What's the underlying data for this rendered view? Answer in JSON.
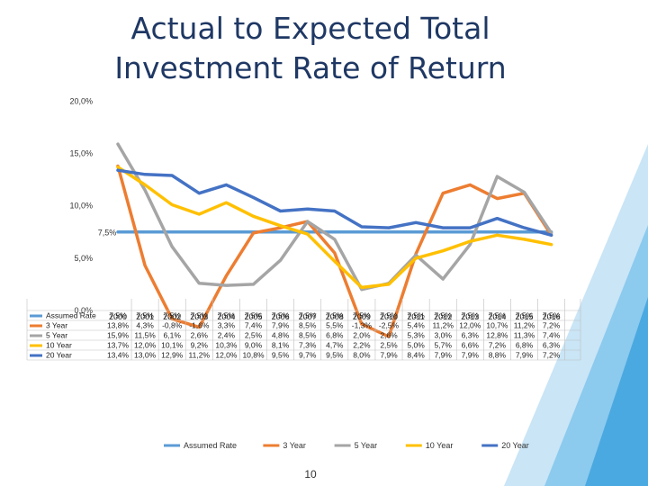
{
  "slide": {
    "title": "Actual to Expected Total Investment Rate of Return",
    "page_number": "10"
  },
  "colors": {
    "title": "#1f3864",
    "accent_light": "#bfe1f5",
    "accent_mid": "#7dc3ec",
    "accent_dark": "#3aa0dc"
  },
  "chart_data": {
    "type": "line",
    "title": "",
    "xlabel": "",
    "ylabel": "",
    "ylim": [
      0,
      20
    ],
    "y_ticks": [
      "0,0%",
      "5,0%",
      "10,0%",
      "15,0%",
      "20,0%"
    ],
    "categories": [
      "2000",
      "2001",
      "2002",
      "2003",
      "2004",
      "2005",
      "2006",
      "2007",
      "2008",
      "2009",
      "2010",
      "2011",
      "2012",
      "2013",
      "2014",
      "2015",
      "2016"
    ],
    "grid": false,
    "legend_position": "bottom",
    "annotation": "7,5%",
    "series": [
      {
        "name": "Assumed Rate",
        "color": "#5b9bd5",
        "values": [
          7.5,
          7.5,
          7.5,
          7.5,
          7.5,
          7.5,
          7.5,
          7.5,
          7.5,
          7.5,
          7.5,
          7.5,
          7.5,
          7.5,
          7.5,
          7.5,
          7.5
        ],
        "labels": [
          "7,5%",
          "7,5%",
          "7,5%",
          "7,5%",
          "7,5%",
          "7,5%",
          "7,5%",
          "7,5%",
          "7,5%",
          "7,5%",
          "7,5%",
          "7,5%",
          "7,5%",
          "7,5%",
          "7,5%",
          "7,5%",
          "7,5%"
        ]
      },
      {
        "name": "3 Year",
        "color": "#ed7d31",
        "values": [
          13.8,
          4.3,
          -0.8,
          -1.6,
          3.3,
          7.4,
          7.9,
          8.5,
          5.5,
          -1.3,
          -2.5,
          5.4,
          11.2,
          12.0,
          10.7,
          11.2,
          7.2
        ],
        "labels": [
          "13,8%",
          "4,3%",
          "-0,8%",
          "-1,6%",
          "3,3%",
          "7,4%",
          "7,9%",
          "8,5%",
          "5,5%",
          "-1,3%",
          "-2,5%",
          "5,4%",
          "11,2%",
          "12,0%",
          "10,7%",
          "11,2%",
          "7,2%"
        ]
      },
      {
        "name": "5 Year",
        "color": "#a5a5a5",
        "values": [
          15.9,
          11.5,
          6.1,
          2.6,
          2.4,
          2.5,
          4.8,
          8.5,
          6.8,
          2.0,
          2.6,
          5.3,
          3.0,
          6.3,
          12.8,
          11.3,
          7.4
        ],
        "labels": [
          "15,9%",
          "11,5%",
          "6,1%",
          "2,6%",
          "2,4%",
          "2,5%",
          "4,8%",
          "8,5%",
          "6,8%",
          "2,0%",
          "2,6%",
          "5,3%",
          "3,0%",
          "6,3%",
          "12,8%",
          "11,3%",
          "7,4%"
        ]
      },
      {
        "name": "10 Year",
        "color": "#ffc000",
        "values": [
          13.7,
          12.0,
          10.1,
          9.2,
          10.3,
          9.0,
          8.1,
          7.3,
          4.7,
          2.2,
          2.5,
          5.0,
          5.7,
          6.6,
          7.2,
          6.8,
          6.3
        ],
        "labels": [
          "13,7%",
          "12,0%",
          "10,1%",
          "9,2%",
          "10,3%",
          "9,0%",
          "8,1%",
          "7,3%",
          "4,7%",
          "2,2%",
          "2,5%",
          "5,0%",
          "5,7%",
          "6,6%",
          "7,2%",
          "6,8%",
          "6,3%"
        ]
      },
      {
        "name": "20 Year",
        "color": "#4472c4",
        "values": [
          13.4,
          13.0,
          12.9,
          11.2,
          12.0,
          10.8,
          9.5,
          9.7,
          9.5,
          8.0,
          7.9,
          8.4,
          7.9,
          7.9,
          8.8,
          7.9,
          7.2
        ],
        "labels": [
          "13,4%",
          "13,0%",
          "12,9%",
          "11,2%",
          "12,0%",
          "10,8%",
          "9,5%",
          "9,7%",
          "9,5%",
          "8,0%",
          "7,9%",
          "8,4%",
          "7,9%",
          "7,9%",
          "8,8%",
          "7,9%",
          "7,2%"
        ]
      }
    ]
  }
}
